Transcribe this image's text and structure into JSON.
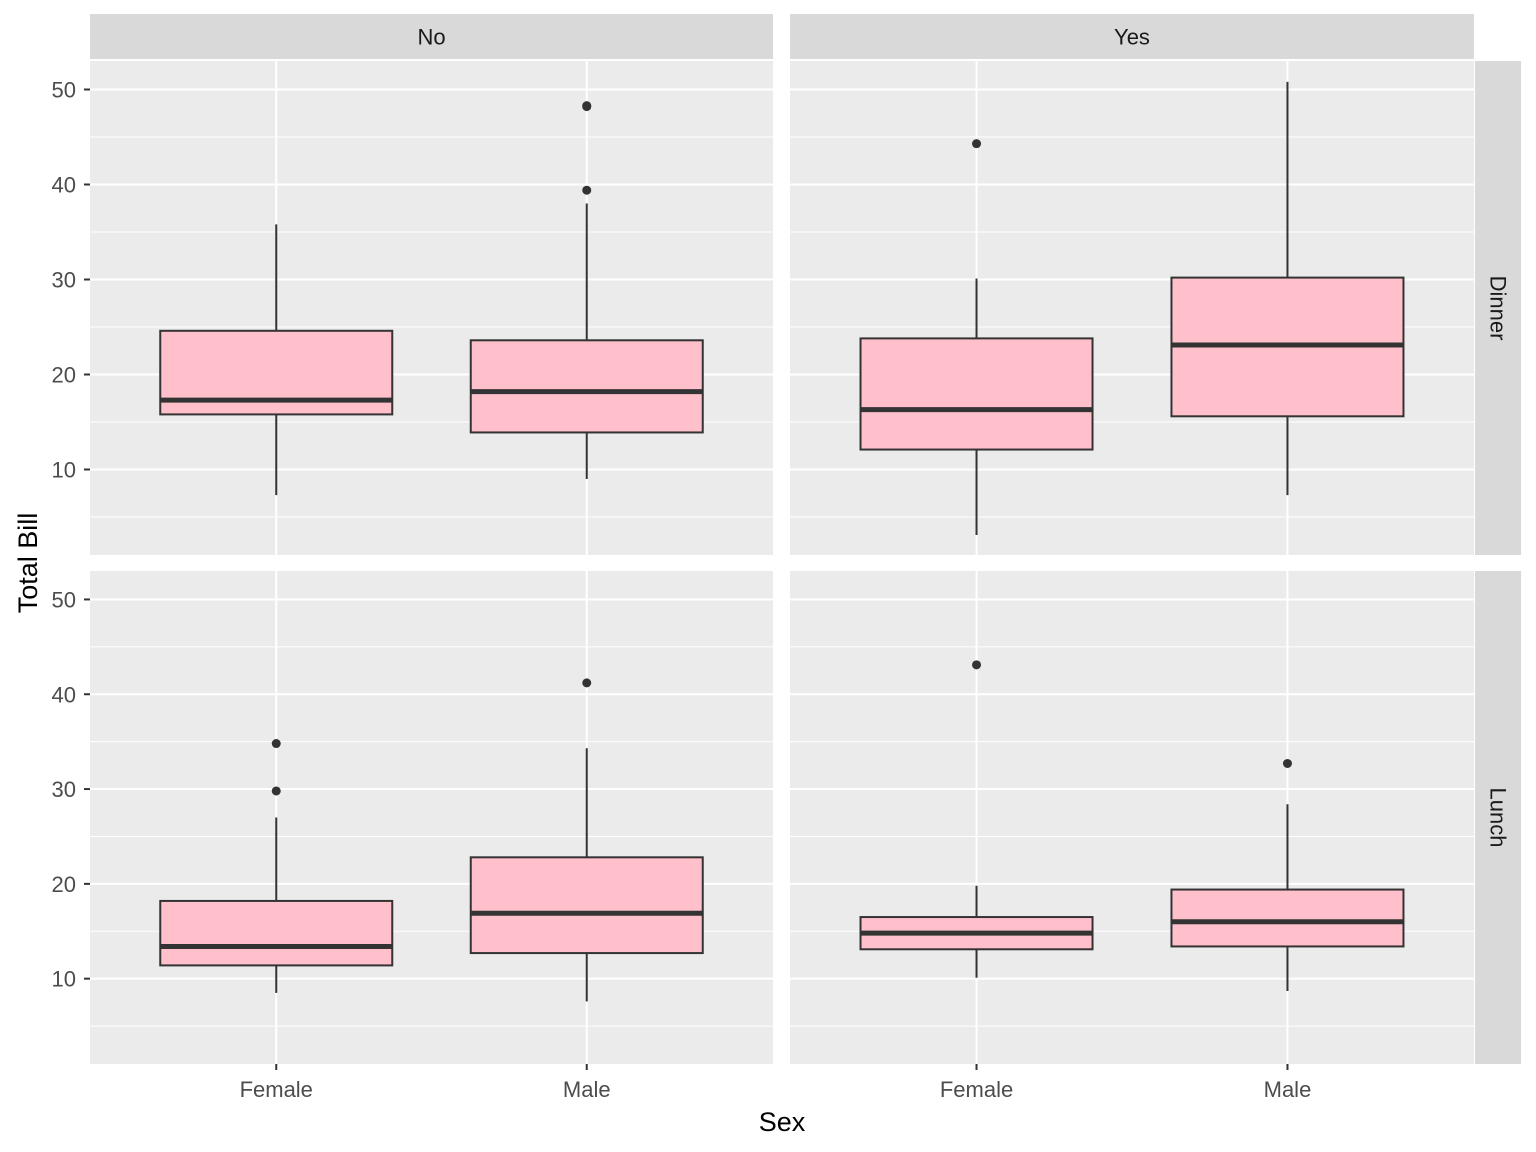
{
  "chart_data": {
    "type": "boxplot",
    "xlabel": "Sex",
    "ylabel": "Total Bill",
    "ylim": [
      1,
      53
    ],
    "yticks": [
      10,
      20,
      30,
      40,
      50
    ],
    "categories": [
      "Female",
      "Male"
    ],
    "col_facets": [
      "No",
      "Yes"
    ],
    "row_facets": [
      "Dinner",
      "Lunch"
    ],
    "grid": true,
    "colors": {
      "box_fill": "#ffc0cb",
      "box_line": "#333333",
      "panel_bg": "#ebebeb",
      "strip_bg": "#d9d9d9",
      "grid": "#ffffff"
    },
    "panels": [
      {
        "col": "No",
        "row": "Dinner",
        "boxes": [
          {
            "category": "Female",
            "min": 7.3,
            "q1": 15.8,
            "median": 17.3,
            "q3": 24.6,
            "max": 35.8,
            "outliers": []
          },
          {
            "category": "Male",
            "min": 9.0,
            "q1": 13.9,
            "median": 18.2,
            "q3": 23.6,
            "max": 38.0,
            "outliers": [
              48.3,
              48.2,
              39.4
            ]
          }
        ]
      },
      {
        "col": "Yes",
        "row": "Dinner",
        "boxes": [
          {
            "category": "Female",
            "min": 3.1,
            "q1": 12.1,
            "median": 16.3,
            "q3": 23.8,
            "max": 30.1,
            "outliers": [
              44.3
            ]
          },
          {
            "category": "Male",
            "min": 7.3,
            "q1": 15.6,
            "median": 23.1,
            "q3": 30.2,
            "max": 50.8,
            "outliers": []
          }
        ]
      },
      {
        "col": "No",
        "row": "Lunch",
        "boxes": [
          {
            "category": "Female",
            "min": 8.5,
            "q1": 11.4,
            "median": 13.4,
            "q3": 18.2,
            "max": 27.0,
            "outliers": [
              34.8,
              29.8
            ]
          },
          {
            "category": "Male",
            "min": 7.6,
            "q1": 12.7,
            "median": 16.9,
            "q3": 22.8,
            "max": 34.3,
            "outliers": [
              41.2
            ]
          }
        ]
      },
      {
        "col": "Yes",
        "row": "Lunch",
        "boxes": [
          {
            "category": "Female",
            "min": 10.1,
            "q1": 13.1,
            "median": 14.8,
            "q3": 16.5,
            "max": 19.8,
            "outliers": [
              43.1
            ]
          },
          {
            "category": "Male",
            "min": 8.7,
            "q1": 13.4,
            "median": 16.0,
            "q3": 19.4,
            "max": 28.4,
            "outliers": [
              32.7
            ]
          }
        ]
      }
    ]
  }
}
